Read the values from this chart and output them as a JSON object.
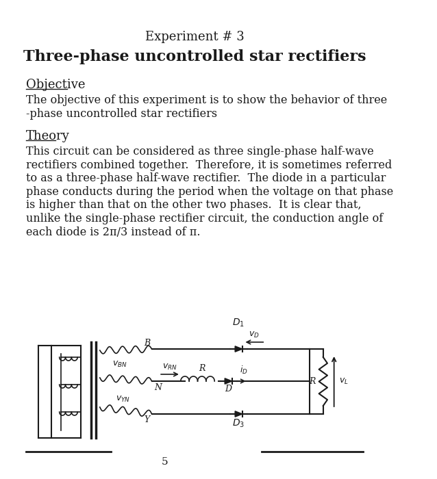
{
  "title1": "Experiment # 3",
  "title2": "Three-phase uncontrolled star rectifiers",
  "section1": "Objective",
  "para1": "The objective of this experiment is to show the behavior of three\n-phase uncontrolled star rectifiers",
  "section2": "Theory",
  "para2": "This circuit can be considered as three single-phase half-wave\nrectifiers combined together.  Therefore, it is sometimes referred\nto as a three-phase half-wave rectifier.  The diode in a particular\nphase conducts during the period when the voltage on that phase\nis higher than that on the other two phases.  It is clear that,\nunlike the single-phase rectifier circuit, the conduction angle of\neach diode is 2π/3 instead of π.",
  "page_number": "5",
  "bg_color": "#ffffff",
  "text_color": "#1a1a1a",
  "font_size_title1": 13,
  "font_size_title2": 16,
  "font_size_section": 13,
  "font_size_body": 11.5
}
